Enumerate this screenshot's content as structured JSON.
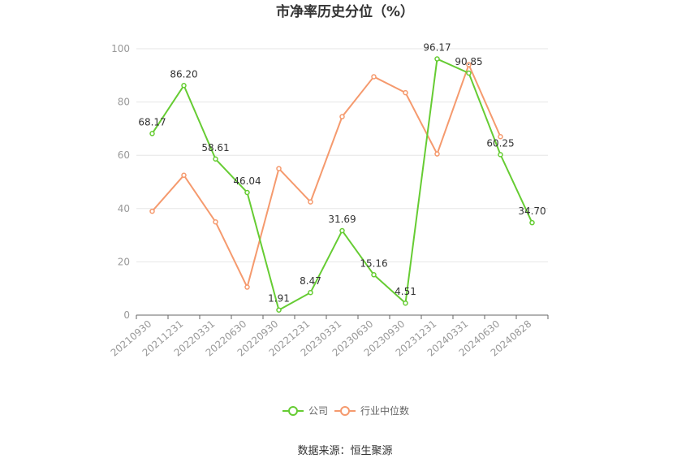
{
  "chart_data": {
    "type": "line",
    "title": "市净率历史分位（%）",
    "categories": [
      "20210930",
      "20211231",
      "20220331",
      "20220630",
      "20220930",
      "20221231",
      "20230331",
      "20230630",
      "20230930",
      "20231231",
      "20240331",
      "20240630",
      "20240828"
    ],
    "ylim": [
      0,
      100
    ],
    "yticks": [
      0,
      20,
      40,
      60,
      80,
      100
    ],
    "grid": true,
    "legend_position": "bottom",
    "series": [
      {
        "name": "公司",
        "color": "#66cc33",
        "values": [
          68.17,
          86.2,
          58.61,
          46.04,
          1.91,
          8.47,
          31.69,
          15.16,
          4.51,
          96.17,
          90.85,
          60.25,
          34.7
        ],
        "labels": [
          "68.17",
          "86.20",
          "58.61",
          "46.04",
          "1.91",
          "8.47",
          "31.69",
          "15.16",
          "4.51",
          "96.17",
          "90.85",
          "60.25",
          "34.70"
        ]
      },
      {
        "name": "行业中位数",
        "color": "#f59a6e",
        "values": [
          39,
          52.5,
          35,
          10.5,
          55,
          42.5,
          74.5,
          89.5,
          83.5,
          60.5,
          94,
          67,
          null
        ]
      }
    ],
    "source": "数据来源：恒生聚源"
  }
}
